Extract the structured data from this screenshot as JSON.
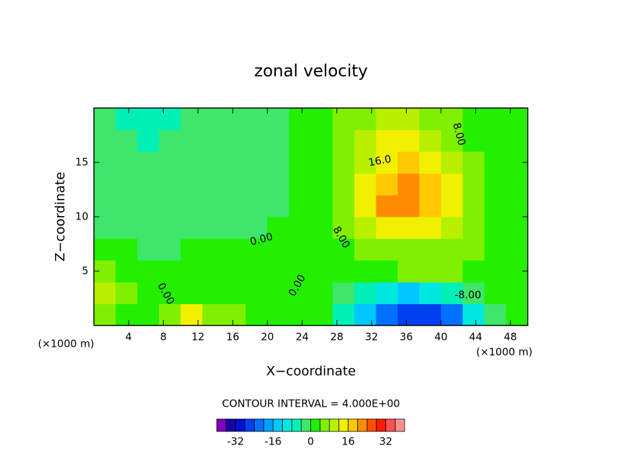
{
  "chart_data": {
    "type": "contour",
    "title": "zonal velocity",
    "x_label": "X−coordinate",
    "y_label": "Z−coordinate",
    "x_unit": "(×1000 m)",
    "y_unit": "(×1000 m)",
    "footer": "CONTOUR INTERVAL = 4.000E+00",
    "xlim": [
      0,
      50
    ],
    "ylim": [
      0,
      20
    ],
    "xticks": [
      4,
      8,
      12,
      16,
      20,
      24,
      28,
      32,
      36,
      40,
      44,
      48
    ],
    "yticks": [
      5,
      10,
      15
    ],
    "x": [
      1.25,
      3.75,
      6.25,
      8.75,
      11.25,
      13.75,
      16.25,
      18.75,
      21.25,
      23.75,
      26.25,
      28.75,
      31.25,
      33.75,
      36.25,
      38.75,
      41.25,
      43.75,
      46.25,
      48.75
    ],
    "y": [
      1,
      3,
      5,
      7,
      9,
      11,
      13,
      15,
      17,
      19
    ],
    "z": [
      [
        6,
        2,
        2,
        6,
        14,
        6,
        6,
        2,
        2,
        2,
        2,
        -6,
        -14,
        -22,
        -26,
        -26,
        -22,
        -10,
        -2,
        2
      ],
      [
        10,
        6,
        2,
        2,
        2,
        2,
        2,
        2,
        2,
        2,
        2,
        -2,
        -6,
        -10,
        -14,
        -10,
        -6,
        -2,
        2,
        2
      ],
      [
        6,
        2,
        2,
        2,
        2,
        2,
        2,
        2,
        2,
        2,
        2,
        2,
        2,
        2,
        6,
        6,
        6,
        2,
        2,
        2
      ],
      [
        2,
        2,
        -2,
        -2,
        2,
        2,
        2,
        2,
        2,
        2,
        2,
        2,
        6,
        6,
        6,
        6,
        6,
        6,
        2,
        2
      ],
      [
        -2,
        -2,
        -2,
        -2,
        -2,
        -2,
        -2,
        -2,
        2,
        2,
        2,
        6,
        10,
        14,
        14,
        14,
        10,
        6,
        2,
        2
      ],
      [
        -2,
        -2,
        -2,
        -2,
        -2,
        -2,
        -2,
        -2,
        -2,
        2,
        2,
        6,
        14,
        22,
        22,
        18,
        14,
        6,
        2,
        2
      ],
      [
        -2,
        -2,
        -2,
        -2,
        -2,
        -2,
        -2,
        -2,
        -2,
        2,
        2,
        6,
        14,
        18,
        22,
        18,
        14,
        6,
        2,
        2
      ],
      [
        -2,
        -2,
        -2,
        -2,
        -2,
        -2,
        -2,
        -2,
        -2,
        2,
        2,
        6,
        10,
        14,
        18,
        14,
        10,
        6,
        2,
        2
      ],
      [
        -2,
        -2,
        -6,
        -2,
        -2,
        -2,
        -2,
        -2,
        -2,
        2,
        2,
        6,
        10,
        14,
        14,
        10,
        6,
        2,
        2,
        2
      ],
      [
        -2,
        -6,
        -6,
        -6,
        -2,
        -2,
        -2,
        -2,
        -2,
        2,
        2,
        6,
        6,
        10,
        10,
        6,
        6,
        2,
        2,
        2
      ]
    ],
    "levels": [
      -36,
      -32,
      -28,
      -24,
      -20,
      -16,
      -12,
      -8,
      -4,
      0,
      4,
      8,
      12,
      16,
      20,
      24,
      28,
      32,
      36
    ],
    "colors": [
      "#7f00bf",
      "#1a00a8",
      "#0010d0",
      "#0040f0",
      "#0070ff",
      "#00a0ff",
      "#00c8ff",
      "#00e8e0",
      "#00f0b8",
      "#3ee66b",
      "#22f000",
      "#80f000",
      "#b8f000",
      "#f0f000",
      "#ffc800",
      "#ff8c00",
      "#ff5000",
      "#ff1c00",
      "#ff5050",
      "#ff9090"
    ],
    "colorbar_ticks": [
      -32,
      -16,
      0,
      16,
      32
    ],
    "annotations": [
      "8.00",
      "16.0",
      "8.00",
      "0.00",
      "0.00",
      "0.00",
      "-8.00"
    ]
  }
}
